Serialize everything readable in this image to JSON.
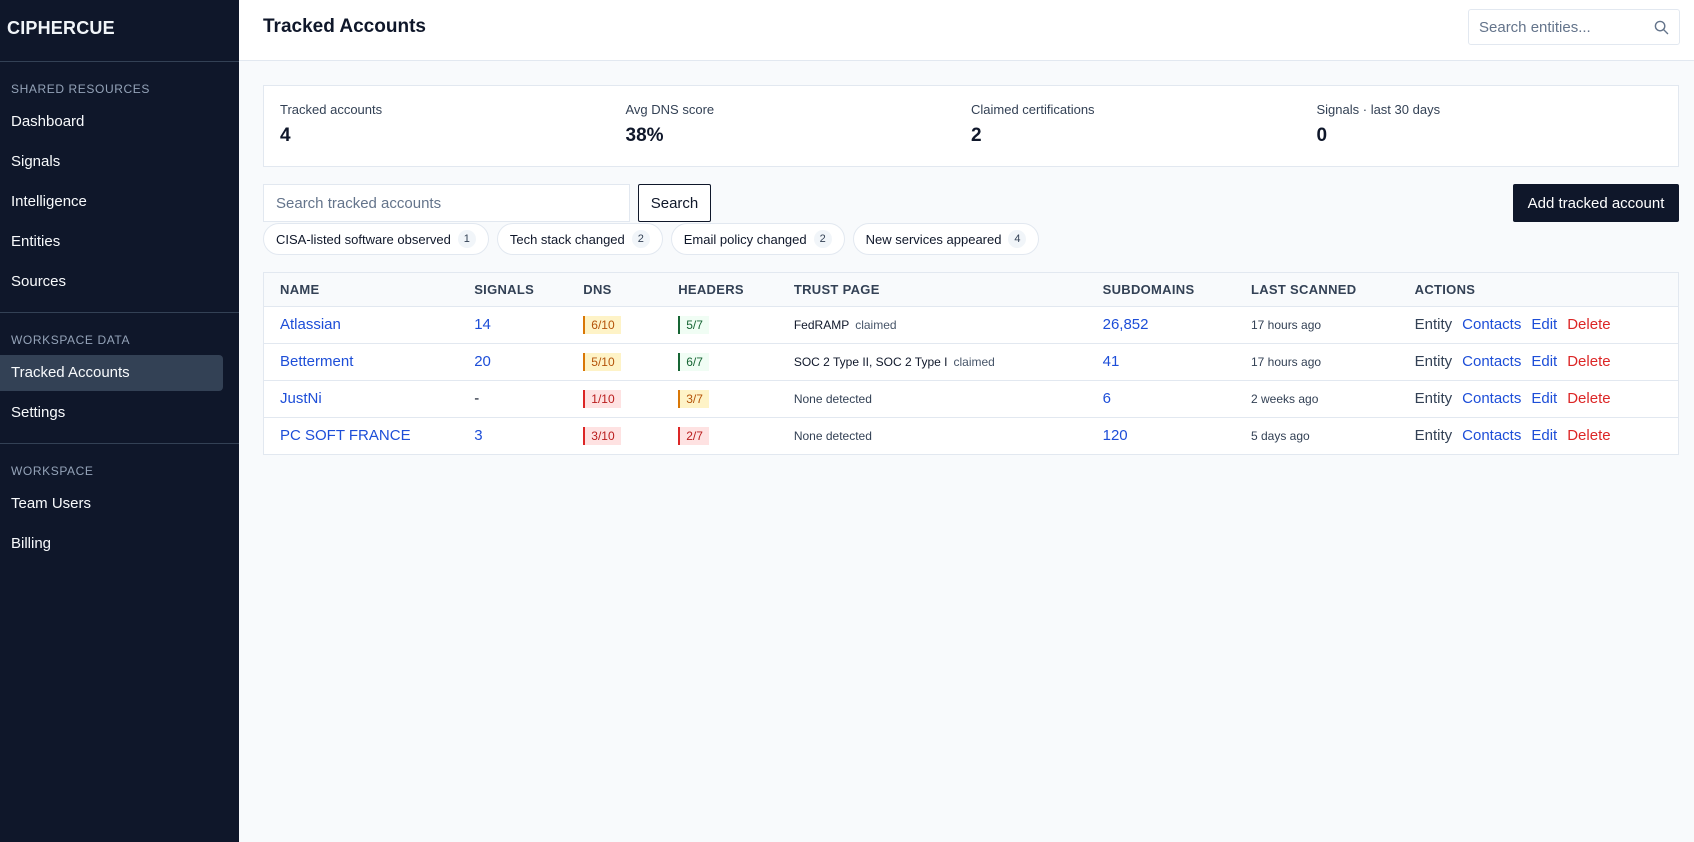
{
  "app": {
    "name": "CIPHERCUE"
  },
  "sidebar": {
    "sections": [
      {
        "label": "SHARED RESOURCES",
        "items": [
          "Dashboard",
          "Signals",
          "Intelligence",
          "Entities",
          "Sources"
        ]
      },
      {
        "label": "WORKSPACE DATA",
        "items": [
          "Tracked Accounts",
          "Settings"
        ]
      },
      {
        "label": "WORKSPACE",
        "items": [
          "Team Users",
          "Billing"
        ]
      }
    ],
    "active": "Tracked Accounts"
  },
  "header": {
    "title": "Tracked Accounts",
    "search_placeholder": "Search entities..."
  },
  "stats": [
    {
      "label": "Tracked accounts",
      "value": "4"
    },
    {
      "label": "Avg DNS score",
      "value": "38%"
    },
    {
      "label": "Claimed certifications",
      "value": "2"
    },
    {
      "label": "Signals · last 30 days",
      "value": "0"
    }
  ],
  "toolbar": {
    "search_placeholder": "Search tracked accounts",
    "search_label": "Search",
    "add_label": "Add tracked account"
  },
  "chips": [
    {
      "label": "CISA-listed software observed",
      "count": "1"
    },
    {
      "label": "Tech stack changed",
      "count": "2"
    },
    {
      "label": "Email policy changed",
      "count": "2"
    },
    {
      "label": "New services appeared",
      "count": "4"
    }
  ],
  "table": {
    "columns": [
      "NAME",
      "SIGNALS",
      "DNS",
      "HEADERS",
      "TRUST PAGE",
      "SUBDOMAINS",
      "LAST SCANNED",
      "ACTIONS"
    ],
    "rows": [
      {
        "name": "Atlassian",
        "signals": "14",
        "dns": "6/10",
        "dns_level": "amber",
        "headers": "5/7",
        "headers_level": "green",
        "trust": "FedRAMP",
        "claimed": "claimed",
        "subdomains": "26,852",
        "scanned": "17 hours ago"
      },
      {
        "name": "Betterment",
        "signals": "20",
        "dns": "5/10",
        "dns_level": "amber",
        "headers": "6/7",
        "headers_level": "green",
        "trust": "SOC 2 Type II, SOC 2 Type I",
        "claimed": "claimed",
        "subdomains": "41",
        "scanned": "17 hours ago"
      },
      {
        "name": "JustNi",
        "signals": "-",
        "dns": "1/10",
        "dns_level": "red",
        "headers": "3/7",
        "headers_level": "amber",
        "trust": "None detected",
        "claimed": "",
        "subdomains": "6",
        "scanned": "2 weeks ago"
      },
      {
        "name": "PC SOFT FRANCE",
        "signals": "3",
        "dns": "3/10",
        "dns_level": "red",
        "headers": "2/7",
        "headers_level": "red",
        "trust": "None detected",
        "claimed": "",
        "subdomains": "120",
        "scanned": "5 days ago"
      }
    ],
    "actions": {
      "entity": "Entity",
      "contacts": "Contacts",
      "edit": "Edit",
      "delete": "Delete"
    }
  },
  "colors": {
    "sidebar_bg": "#0f172a",
    "link": "#1d4ed8",
    "danger": "#dc2626",
    "warn": "#d97706",
    "ok": "#166534"
  }
}
